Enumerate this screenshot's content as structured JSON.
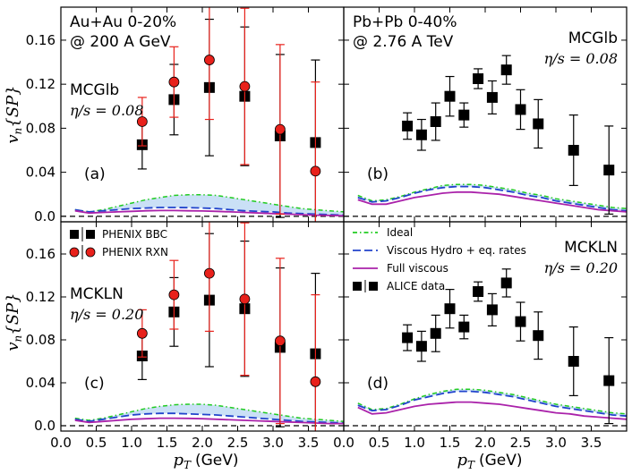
{
  "chart_data": {
    "type": "scatter",
    "x_axis_label": "p",
    "x_axis_sub": "T",
    "x_axis_unit": "(GeV)",
    "y_axis_label": "v",
    "y_axis_sub": "n",
    "y_axis_sup": "{SP}",
    "xlim": [
      0,
      4
    ],
    "ylim": [
      -0.005,
      0.19
    ],
    "x_ticks": [
      "0.0",
      "0.5",
      "1.0",
      "1.5",
      "2.0",
      "2.5",
      "3.0",
      "3.5"
    ],
    "x_tick_values": [
      0,
      0.5,
      1,
      1.5,
      2,
      2.5,
      3,
      3.5
    ],
    "y_ticks": [
      "0.0",
      "0.04",
      "0.08",
      "0.12",
      "0.16"
    ],
    "y_tick_values": [
      0,
      0.04,
      0.08,
      0.12,
      0.16
    ],
    "legend_top": [
      "PHENIX BBC",
      "PHENIX RXN"
    ],
    "legend_bottom": [
      "Ideal",
      "Viscous Hydro + eq. rates",
      "Full viscous",
      "ALICE data"
    ],
    "panels": [
      {
        "id": "a",
        "tag": "(a)",
        "header": [
          "Au+Au 0-20%",
          "@ 200 A GeV"
        ],
        "model": "MCGlb",
        "eta_text": "η/s = 0.08",
        "eta_value": 0.08,
        "series": [
          {
            "name": "PHENIX BBC",
            "marker": "square",
            "x": [
              1.15,
              1.6,
              2.1,
              2.6,
              3.1,
              3.6
            ],
            "y": [
              0.065,
              0.106,
              0.117,
              0.109,
              0.073,
              0.067
            ],
            "err": [
              0.022,
              0.032,
              0.062,
              0.063,
              0.074,
              0.075
            ]
          },
          {
            "name": "PHENIX RXN",
            "marker": "circle",
            "x": [
              1.15,
              1.6,
              2.1,
              2.6,
              3.1,
              3.6
            ],
            "y": [
              0.086,
              0.122,
              0.142,
              0.118,
              0.079,
              0.041
            ],
            "err": [
              0.022,
              0.032,
              0.054,
              0.071,
              0.077,
              0.081
            ]
          }
        ],
        "curves": [
          {
            "name": "Ideal",
            "x": [
              0.2,
              0.4,
              0.6,
              0.8,
              1.0,
              1.2,
              1.4,
              1.6,
              1.8,
              2.0,
              2.2,
              2.4,
              2.6,
              2.8,
              3.0,
              3.2,
              3.4,
              3.6,
              3.8,
              4.0
            ],
            "y": [
              0.006,
              0.004,
              0.006,
              0.009,
              0.012,
              0.015,
              0.017,
              0.019,
              0.0195,
              0.0195,
              0.019,
              0.017,
              0.015,
              0.013,
              0.011,
              0.009,
              0.007,
              0.006,
              0.005,
              0.004
            ]
          },
          {
            "name": "Viscous Hydro + eq. rates",
            "x": [
              0.2,
              0.4,
              0.6,
              0.8,
              1.0,
              1.2,
              1.4,
              1.6,
              1.8,
              2.0,
              2.2,
              2.4,
              2.6,
              2.8,
              3.0,
              3.2,
              3.4,
              3.6,
              3.8,
              4.0
            ],
            "y": [
              0.006,
              0.004,
              0.005,
              0.006,
              0.007,
              0.0075,
              0.008,
              0.008,
              0.0078,
              0.0075,
              0.007,
              0.006,
              0.005,
              0.0045,
              0.004,
              0.003,
              0.0025,
              0.002,
              0.0015,
              0.001
            ]
          },
          {
            "name": "Full viscous",
            "x": [
              0.2,
              0.4,
              0.6,
              0.8,
              1.0,
              1.2,
              1.4,
              1.6,
              1.8,
              2.0,
              2.2,
              2.4,
              2.6,
              2.8,
              3.0,
              3.2,
              3.4,
              3.6,
              3.8,
              4.0
            ],
            "y": [
              0.005,
              0.003,
              0.0035,
              0.004,
              0.0045,
              0.005,
              0.0052,
              0.0052,
              0.005,
              0.0048,
              0.0045,
              0.004,
              0.0035,
              0.003,
              0.0025,
              0.002,
              0.0015,
              0.001,
              0.0008,
              0.0005
            ]
          }
        ]
      },
      {
        "id": "b",
        "tag": "(b)",
        "header": [
          "Pb+Pb 0-40%",
          "@ 2.76 A TeV"
        ],
        "model": "MCGlb",
        "eta_text": "η/s = 0.08",
        "eta_value": 0.08,
        "series": [
          {
            "name": "ALICE data",
            "marker": "square",
            "x": [
              0.9,
              1.1,
              1.3,
              1.5,
              1.7,
              1.9,
              2.1,
              2.3,
              2.5,
              2.75,
              3.25,
              3.75
            ],
            "y": [
              0.082,
              0.074,
              0.086,
              0.109,
              0.092,
              0.125,
              0.108,
              0.133,
              0.097,
              0.084,
              0.06,
              0.042
            ],
            "err": [
              0.012,
              0.014,
              0.017,
              0.018,
              0.011,
              0.009,
              0.015,
              0.013,
              0.018,
              0.022,
              0.032,
              0.04
            ]
          }
        ],
        "curves": [
          {
            "name": "Ideal",
            "x": [
              0.2,
              0.4,
              0.6,
              0.8,
              1.0,
              1.2,
              1.4,
              1.6,
              1.8,
              2.0,
              2.2,
              2.4,
              2.6,
              2.8,
              3.0,
              3.2,
              3.4,
              3.6,
              3.8,
              4.0
            ],
            "y": [
              0.019,
              0.014,
              0.015,
              0.018,
              0.022,
              0.025,
              0.028,
              0.029,
              0.029,
              0.028,
              0.026,
              0.024,
              0.021,
              0.019,
              0.016,
              0.014,
              0.012,
              0.01,
              0.008,
              0.007
            ]
          },
          {
            "name": "Viscous Hydro + eq. rates",
            "x": [
              0.2,
              0.4,
              0.6,
              0.8,
              1.0,
              1.2,
              1.4,
              1.6,
              1.8,
              2.0,
              2.2,
              2.4,
              2.6,
              2.8,
              3.0,
              3.2,
              3.4,
              3.6,
              3.8,
              4.0
            ],
            "y": [
              0.017,
              0.013,
              0.014,
              0.017,
              0.021,
              0.024,
              0.026,
              0.027,
              0.027,
              0.026,
              0.024,
              0.022,
              0.019,
              0.017,
              0.014,
              0.012,
              0.01,
              0.008,
              0.006,
              0.005
            ]
          },
          {
            "name": "Full viscous",
            "x": [
              0.2,
              0.4,
              0.6,
              0.8,
              1.0,
              1.2,
              1.4,
              1.6,
              1.8,
              2.0,
              2.2,
              2.4,
              2.6,
              2.8,
              3.0,
              3.2,
              3.4,
              3.6,
              3.8,
              4.0
            ],
            "y": [
              0.015,
              0.011,
              0.011,
              0.014,
              0.017,
              0.019,
              0.021,
              0.022,
              0.022,
              0.021,
              0.02,
              0.018,
              0.016,
              0.014,
              0.012,
              0.01,
              0.008,
              0.006,
              0.005,
              0.004
            ]
          }
        ]
      },
      {
        "id": "c",
        "tag": "(c)",
        "header": [],
        "model": "MCKLN",
        "eta_text": "η/s = 0.20",
        "eta_value": 0.2,
        "series": [
          {
            "name": "PHENIX BBC",
            "marker": "square",
            "x": [
              1.15,
              1.6,
              2.1,
              2.6,
              3.1,
              3.6
            ],
            "y": [
              0.065,
              0.106,
              0.117,
              0.109,
              0.073,
              0.067
            ],
            "err": [
              0.022,
              0.032,
              0.062,
              0.063,
              0.074,
              0.075
            ]
          },
          {
            "name": "PHENIX RXN",
            "marker": "circle",
            "x": [
              1.15,
              1.6,
              2.1,
              2.6,
              3.1,
              3.6
            ],
            "y": [
              0.086,
              0.122,
              0.142,
              0.118,
              0.079,
              0.041
            ],
            "err": [
              0.022,
              0.032,
              0.054,
              0.071,
              0.077,
              0.081
            ]
          }
        ],
        "curves": [
          {
            "name": "Ideal",
            "x": [
              0.2,
              0.4,
              0.6,
              0.8,
              1.0,
              1.2,
              1.4,
              1.6,
              1.8,
              2.0,
              2.2,
              2.4,
              2.6,
              2.8,
              3.0,
              3.2,
              3.4,
              3.6,
              3.8,
              4.0
            ],
            "y": [
              0.007,
              0.005,
              0.007,
              0.01,
              0.013,
              0.016,
              0.018,
              0.0195,
              0.02,
              0.02,
              0.019,
              0.017,
              0.015,
              0.013,
              0.011,
              0.009,
              0.007,
              0.006,
              0.005,
              0.004
            ]
          },
          {
            "name": "Viscous Hydro + eq. rates",
            "x": [
              0.2,
              0.4,
              0.6,
              0.8,
              1.0,
              1.2,
              1.4,
              1.6,
              1.8,
              2.0,
              2.2,
              2.4,
              2.6,
              2.8,
              3.0,
              3.2,
              3.4,
              3.6,
              3.8,
              4.0
            ],
            "y": [
              0.006,
              0.004,
              0.006,
              0.008,
              0.01,
              0.011,
              0.0115,
              0.0115,
              0.011,
              0.0105,
              0.01,
              0.009,
              0.008,
              0.007,
              0.006,
              0.005,
              0.004,
              0.0035,
              0.003,
              0.0025
            ]
          },
          {
            "name": "Full viscous",
            "x": [
              0.2,
              0.4,
              0.6,
              0.8,
              1.0,
              1.2,
              1.4,
              1.6,
              1.8,
              2.0,
              2.2,
              2.4,
              2.6,
              2.8,
              3.0,
              3.2,
              3.4,
              3.6,
              3.8,
              4.0
            ],
            "y": [
              0.005,
              0.003,
              0.004,
              0.005,
              0.006,
              0.0065,
              0.007,
              0.007,
              0.0068,
              0.0065,
              0.006,
              0.0055,
              0.005,
              0.0045,
              0.004,
              0.0035,
              0.003,
              0.0025,
              0.002,
              0.002
            ]
          }
        ]
      },
      {
        "id": "d",
        "tag": "(d)",
        "header": [],
        "model": "MCKLN",
        "eta_text": "η/s = 0.20",
        "eta_value": 0.2,
        "series": [
          {
            "name": "ALICE data",
            "marker": "square",
            "x": [
              0.9,
              1.1,
              1.3,
              1.5,
              1.7,
              1.9,
              2.1,
              2.3,
              2.5,
              2.75,
              3.25,
              3.75
            ],
            "y": [
              0.082,
              0.074,
              0.086,
              0.109,
              0.092,
              0.125,
              0.108,
              0.133,
              0.097,
              0.084,
              0.06,
              0.042
            ],
            "err": [
              0.012,
              0.014,
              0.017,
              0.018,
              0.011,
              0.009,
              0.015,
              0.013,
              0.018,
              0.022,
              0.032,
              0.04
            ]
          }
        ],
        "curves": [
          {
            "name": "Ideal",
            "x": [
              0.2,
              0.4,
              0.6,
              0.8,
              1.0,
              1.2,
              1.4,
              1.6,
              1.8,
              2.0,
              2.2,
              2.4,
              2.6,
              2.8,
              3.0,
              3.2,
              3.4,
              3.6,
              3.8,
              4.0
            ],
            "y": [
              0.021,
              0.015,
              0.016,
              0.02,
              0.025,
              0.029,
              0.032,
              0.034,
              0.034,
              0.033,
              0.031,
              0.029,
              0.026,
              0.023,
              0.02,
              0.018,
              0.016,
              0.014,
              0.012,
              0.011
            ]
          },
          {
            "name": "Viscous Hydro + eq. rates",
            "x": [
              0.2,
              0.4,
              0.6,
              0.8,
              1.0,
              1.2,
              1.4,
              1.6,
              1.8,
              2.0,
              2.2,
              2.4,
              2.6,
              2.8,
              3.0,
              3.2,
              3.4,
              3.6,
              3.8,
              4.0
            ],
            "y": [
              0.019,
              0.014,
              0.015,
              0.019,
              0.024,
              0.027,
              0.03,
              0.032,
              0.032,
              0.031,
              0.029,
              0.027,
              0.024,
              0.021,
              0.018,
              0.016,
              0.014,
              0.012,
              0.01,
              0.009
            ]
          },
          {
            "name": "Full viscous",
            "x": [
              0.2,
              0.4,
              0.6,
              0.8,
              1.0,
              1.2,
              1.4,
              1.6,
              1.8,
              2.0,
              2.2,
              2.4,
              2.6,
              2.8,
              3.0,
              3.2,
              3.4,
              3.6,
              3.8,
              4.0
            ],
            "y": [
              0.017,
              0.011,
              0.012,
              0.015,
              0.018,
              0.02,
              0.021,
              0.022,
              0.022,
              0.021,
              0.02,
              0.018,
              0.016,
              0.014,
              0.012,
              0.011,
              0.009,
              0.008,
              0.007,
              0.006
            ]
          }
        ]
      }
    ]
  }
}
